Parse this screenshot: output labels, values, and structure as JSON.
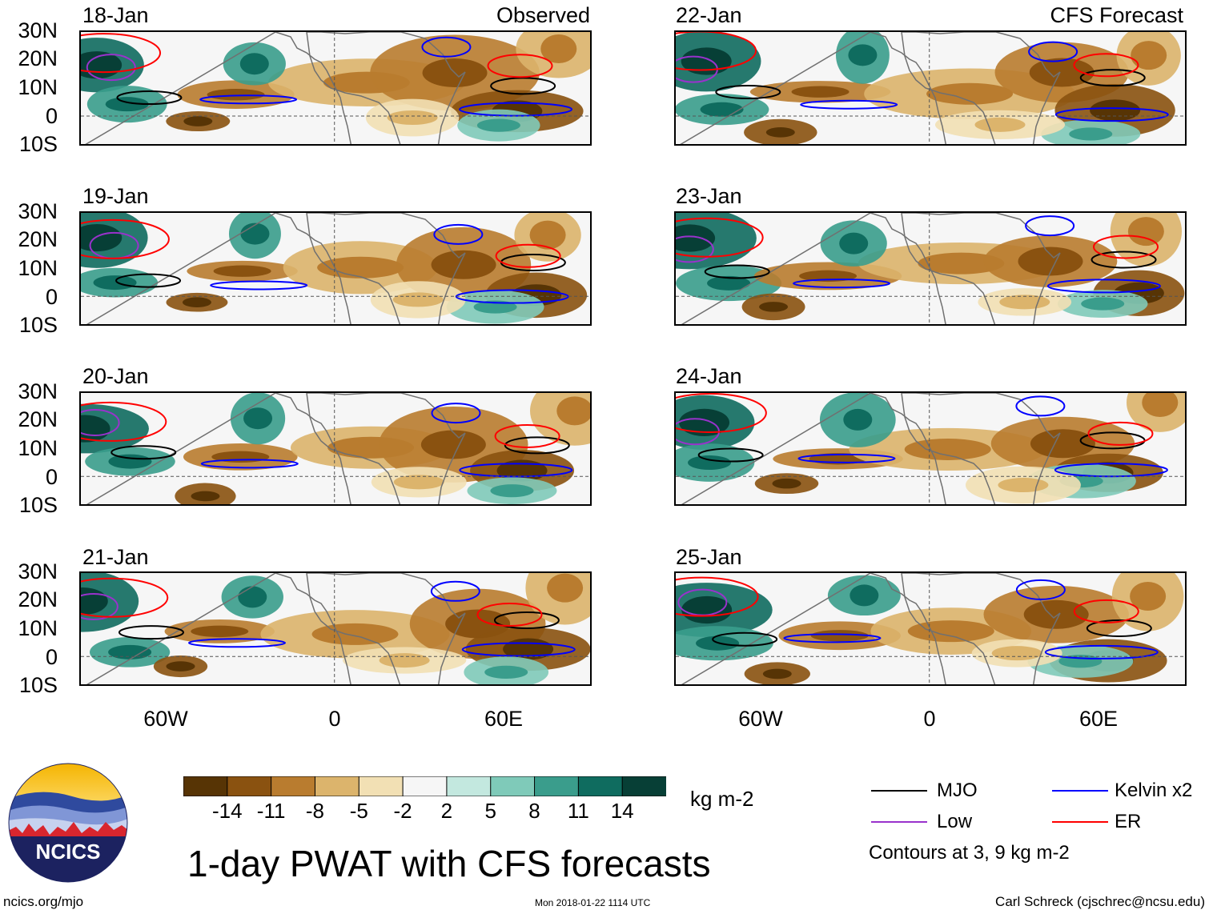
{
  "observed_label": "Observed",
  "forecast_label": "CFS Forecast",
  "panels_left": [
    {
      "date": "18-Jan"
    },
    {
      "date": "19-Jan"
    },
    {
      "date": "20-Jan"
    },
    {
      "date": "21-Jan"
    }
  ],
  "panels_right": [
    {
      "date": "22-Jan"
    },
    {
      "date": "23-Jan"
    },
    {
      "date": "24-Jan"
    },
    {
      "date": "25-Jan"
    }
  ],
  "lat_labels": [
    "30N",
    "20N",
    "10N",
    "0",
    "10S"
  ],
  "lon_labels": [
    "60W",
    "0",
    "60E"
  ],
  "colorbar": {
    "ticks": [
      "-14",
      "-11",
      "-8",
      "-5",
      "-2",
      "2",
      "5",
      "8",
      "11",
      "14"
    ],
    "colors": [
      "#573405",
      "#8a5210",
      "#b97c2f",
      "#dcb46c",
      "#f2e0b4",
      "#f6f6f6",
      "#c3e8df",
      "#7fcab9",
      "#3a9d8c",
      "#0f6c5f",
      "#073f36"
    ],
    "units": "kg m-2"
  },
  "legend": {
    "items": [
      {
        "label": "MJO",
        "color": "#000000"
      },
      {
        "label": "Kelvin x2",
        "color": "#0000ff"
      },
      {
        "label": "Low",
        "color": "#9932cc"
      },
      {
        "label": "ER",
        "color": "#ff0000"
      }
    ],
    "note": "Contours at 3, 9 kg m-2"
  },
  "title": "1-day PWAT with CFS forecasts",
  "logo_text": "NCICS",
  "footer": {
    "site": "ncics.org/mjo",
    "timestamp": "Mon 2018-01-22 1114 UTC",
    "credit": "Carl Schreck (cjschrec@ncsu.edu)"
  }
}
